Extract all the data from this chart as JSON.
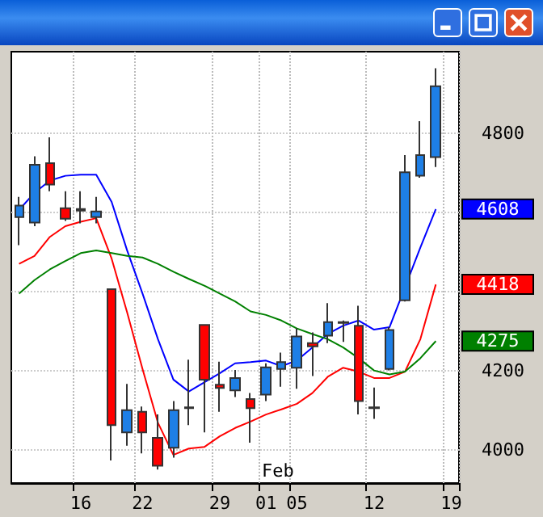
{
  "chart_data": {
    "type": "candlestick",
    "categories": [
      null,
      null,
      null,
      null,
      "16",
      null,
      null,
      null,
      "22",
      null,
      null,
      null,
      null,
      "29",
      null,
      null,
      "01",
      null,
      "05",
      null,
      null,
      null,
      null,
      "12",
      null,
      null,
      null,
      null,
      "19"
    ],
    "ohlc": [
      [
        4588,
        4639,
        4517,
        4617
      ],
      [
        4574,
        4741,
        4565,
        4720
      ],
      [
        4724,
        4789,
        4653,
        4670
      ],
      [
        4610,
        4653,
        4578,
        4584
      ],
      [
        4608,
        4653,
        4572,
        4604
      ],
      [
        4588,
        4639,
        4572,
        4602
      ],
      [
        4406,
        4406,
        3974,
        4063
      ],
      [
        4045,
        4167,
        4011,
        4101
      ],
      [
        4097,
        4110,
        3992,
        4045
      ],
      [
        4031,
        4090,
        3951,
        3961
      ],
      [
        4006,
        4124,
        3981,
        4101
      ],
      [
        4106,
        4228,
        4063,
        4108
      ],
      [
        4316,
        4316,
        4045,
        4178
      ],
      [
        4165,
        4223,
        4097,
        4157
      ],
      [
        4151,
        4202,
        4134,
        4182
      ],
      [
        4129,
        4144,
        4019,
        4106
      ],
      [
        4140,
        4219,
        4124,
        4209
      ],
      [
        4205,
        4246,
        4160,
        4222
      ],
      [
        4208,
        4307,
        4155,
        4287
      ],
      [
        4270,
        4297,
        4187,
        4262
      ],
      [
        4289,
        4371,
        4270,
        4323
      ],
      [
        4321,
        4327,
        4273,
        4323
      ],
      [
        4314,
        4364,
        4090,
        4124
      ],
      [
        4108,
        4158,
        4079,
        4106
      ],
      [
        4205,
        4310,
        4201,
        4303
      ],
      [
        4378,
        4744,
        4375,
        4701
      ],
      [
        4692,
        4830,
        4687,
        4744
      ],
      [
        4739,
        4963,
        4714,
        4918
      ],
      null
    ],
    "colors": [
      "#1e7fe6",
      "#1e7fe6",
      "#ff0000",
      "#ff0000",
      "#ff0000",
      "#1e7fe6",
      "#ff0000",
      "#1e7fe6",
      "#ff0000",
      "#ff0000",
      "#1e7fe6",
      "#1e7fe6",
      "#ff0000",
      "#ff0000",
      "#1e7fe6",
      "#ff0000",
      "#1e7fe6",
      "#1e7fe6",
      "#1e7fe6",
      "#ff0000",
      "#1e7fe6",
      "#1e7fe6",
      "#ff0000",
      "#ff0000",
      "#1e7fe6",
      "#1e7fe6",
      "#1e7fe6",
      "#1e7fe6",
      null
    ],
    "series": [
      {
        "type": "line",
        "color": "#0000ff",
        "values": [
          4606,
          4649,
          4680,
          4692,
          4695,
          4695,
          4626,
          4504,
          4395,
          4280,
          4178,
          4148,
          4171,
          4194,
          4219,
          4222,
          4226,
          4212,
          4226,
          4259,
          4293,
          4314,
          4327,
          4304,
          4310,
          null,
          4511,
          4608,
          null
        ]
      },
      {
        "type": "line",
        "color": "#ff0000",
        "values": [
          4470,
          4490,
          4538,
          4565,
          4576,
          4585,
          4483,
          4348,
          4205,
          4069,
          3988,
          4004,
          4008,
          4035,
          4056,
          4072,
          4090,
          4103,
          4117,
          4144,
          4185,
          4208,
          4198,
          4182,
          4182,
          4198,
          4280,
          4418,
          null
        ]
      },
      {
        "type": "line",
        "color": "#008000",
        "values": [
          4395,
          4429,
          4456,
          4477,
          4497,
          4504,
          4497,
          4490,
          4486,
          4470,
          4450,
          4432,
          4415,
          4395,
          4375,
          4350,
          4341,
          4327,
          4307,
          4293,
          4280,
          4259,
          4232,
          4201,
          4191,
          4198,
          4232,
          4275,
          null
        ]
      }
    ],
    "ylim": [
      3917,
      5005
    ],
    "yticks": [
      4000,
      4200,
      {
        "value": 4400,
        "label": null
      },
      {
        "value": 4600,
        "label": null
      },
      4800
    ],
    "grid": true,
    "annotations": [
      "Feb",
      "4608",
      "4418",
      "4275"
    ]
  }
}
